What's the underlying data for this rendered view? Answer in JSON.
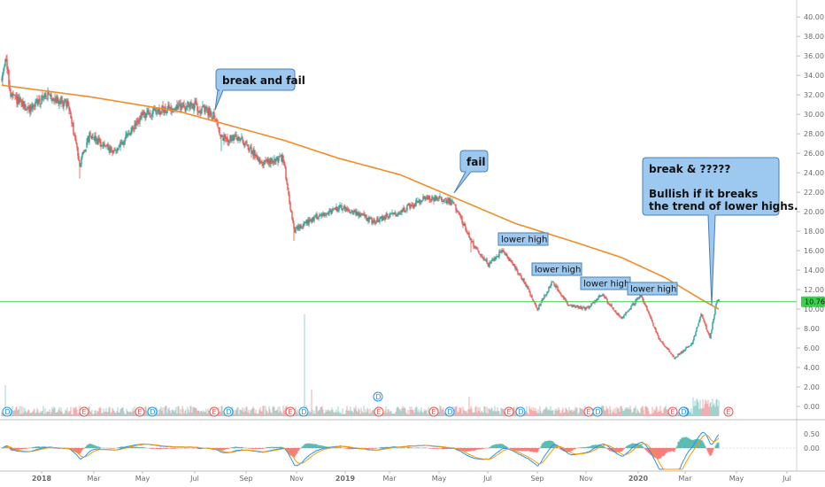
{
  "chart_data": {
    "type": "candlestick",
    "price_axis": {
      "ticks": [
        "40.00",
        "38.00",
        "36.00",
        "34.00",
        "32.00",
        "30.00",
        "28.00",
        "26.00",
        "24.00",
        "22.00",
        "20.00",
        "18.00",
        "16.00",
        "14.00",
        "12.00",
        "10.00",
        "8.00",
        "6.00",
        "4.00",
        "2.00",
        "0.00"
      ],
      "tick_values": [
        40,
        38,
        36,
        34,
        32,
        30,
        28,
        26,
        24,
        22,
        20,
        18,
        16,
        14,
        12,
        10,
        8,
        6,
        4,
        2,
        0
      ],
      "range": [
        -1,
        41.2
      ]
    },
    "last_price_label": "10.76",
    "last_price": 10.76,
    "time_axis": {
      "labels": [
        "2018",
        "Mar",
        "May",
        "Jul",
        "Sep",
        "Nov",
        "2019",
        "Mar",
        "May",
        "Jul",
        "Sep",
        "Nov",
        "2020",
        "Mar",
        "May",
        "Jul"
      ],
      "bold_labels": [
        "2018",
        "2019",
        "2020"
      ]
    },
    "price_key_points": [
      {
        "t": 0,
        "p": 33.5
      },
      {
        "t": 4,
        "p": 36.0
      },
      {
        "t": 10,
        "p": 32.0
      },
      {
        "t": 30,
        "p": 30.5
      },
      {
        "t": 50,
        "p": 32.0
      },
      {
        "t": 75,
        "p": 31.0
      },
      {
        "t": 88,
        "p": 25.0
      },
      {
        "t": 100,
        "p": 28.0
      },
      {
        "t": 125,
        "p": 26.0
      },
      {
        "t": 140,
        "p": 27.5
      },
      {
        "t": 160,
        "p": 30.0
      },
      {
        "t": 185,
        "p": 30.5
      },
      {
        "t": 215,
        "p": 31.0
      },
      {
        "t": 240,
        "p": 30.0
      },
      {
        "t": 248,
        "p": 27.5
      },
      {
        "t": 270,
        "p": 27.5
      },
      {
        "t": 295,
        "p": 25.0
      },
      {
        "t": 318,
        "p": 25.5
      },
      {
        "t": 330,
        "p": 18.0
      },
      {
        "t": 355,
        "p": 19.5
      },
      {
        "t": 385,
        "p": 20.5
      },
      {
        "t": 420,
        "p": 19.0
      },
      {
        "t": 450,
        "p": 20.0
      },
      {
        "t": 480,
        "p": 21.5
      },
      {
        "t": 510,
        "p": 21.0
      },
      {
        "t": 530,
        "p": 17.0
      },
      {
        "t": 550,
        "p": 14.5
      },
      {
        "t": 565,
        "p": 16.0
      },
      {
        "t": 578,
        "p": 14.5
      },
      {
        "t": 592,
        "p": 12.5
      },
      {
        "t": 605,
        "p": 10.0
      },
      {
        "t": 622,
        "p": 12.8
      },
      {
        "t": 640,
        "p": 10.5
      },
      {
        "t": 660,
        "p": 10.0
      },
      {
        "t": 678,
        "p": 11.5
      },
      {
        "t": 700,
        "p": 9.0
      },
      {
        "t": 722,
        "p": 11.5
      },
      {
        "t": 742,
        "p": 7.0
      },
      {
        "t": 760,
        "p": 5.0
      },
      {
        "t": 780,
        "p": 6.5
      },
      {
        "t": 790,
        "p": 9.5
      },
      {
        "t": 800,
        "p": 7.0
      },
      {
        "t": 808,
        "p": 11.0
      }
    ],
    "moving_average_key_points": [
      {
        "t": 0,
        "p": 33.0
      },
      {
        "t": 100,
        "p": 31.8
      },
      {
        "t": 200,
        "p": 30.3
      },
      {
        "t": 260,
        "p": 28.8
      },
      {
        "t": 320,
        "p": 27.3
      },
      {
        "t": 380,
        "p": 25.5
      },
      {
        "t": 450,
        "p": 23.8
      },
      {
        "t": 510,
        "p": 21.5
      },
      {
        "t": 580,
        "p": 18.8
      },
      {
        "t": 650,
        "p": 16.8
      },
      {
        "t": 700,
        "p": 15.3
      },
      {
        "t": 750,
        "p": 13.2
      },
      {
        "t": 790,
        "p": 11.0
      },
      {
        "t": 810,
        "p": 10.0
      }
    ],
    "annotations": [
      {
        "text": "break and fail",
        "style": "speech"
      },
      {
        "text": "fail",
        "style": "speech"
      },
      {
        "text": "lower high",
        "style": "label"
      },
      {
        "text": "lower high",
        "style": "label"
      },
      {
        "text": "lower high",
        "style": "label"
      },
      {
        "text": "lower high",
        "style": "label"
      },
      {
        "lines": [
          "break & ?????",
          "",
          "Bullish if it breaks",
          "the trend of lower highs."
        ],
        "style": "speech"
      }
    ],
    "event_markers": [
      {
        "letter": "D"
      },
      {
        "letter": "E"
      },
      {
        "letter": "E"
      },
      {
        "letter": "D"
      },
      {
        "letter": "E"
      },
      {
        "letter": "D"
      },
      {
        "letter": "E"
      },
      {
        "letter": "D"
      },
      {
        "letter": "D"
      },
      {
        "letter": "E"
      },
      {
        "letter": "E"
      },
      {
        "letter": "D"
      },
      {
        "letter": "E"
      },
      {
        "letter": "D"
      },
      {
        "letter": "E"
      },
      {
        "letter": "D"
      },
      {
        "letter": "E"
      },
      {
        "letter": "D"
      },
      {
        "letter": "D"
      },
      {
        "letter": "E"
      }
    ],
    "oscillator_axis": {
      "ticks": [
        "0.50",
        "0.00"
      ],
      "tick_values": [
        0.5,
        0.0
      ],
      "range": [
        -0.75,
        0.9
      ]
    },
    "colors": {
      "up": "#26a69a",
      "down": "#ef5350",
      "moving_average": "#f28c28",
      "horizontal_line": "#37d14b",
      "callout_fill": "#9dc8f0",
      "callout_stroke": "#4a7fb5",
      "price_label_bg": "#37d14b",
      "fast_line": "#2196f3",
      "slow_line": "#ff9800"
    }
  }
}
